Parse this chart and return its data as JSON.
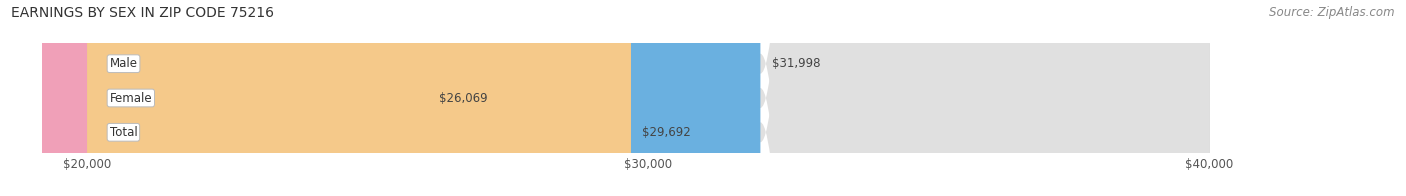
{
  "title": "EARNINGS BY SEX IN ZIP CODE 75216",
  "source": "Source: ZipAtlas.com",
  "categories": [
    "Male",
    "Female",
    "Total"
  ],
  "values": [
    31998,
    26069,
    29692
  ],
  "bar_colors": [
    "#6ab0e0",
    "#f0a0b8",
    "#f5c98a"
  ],
  "bar_bg_color": "#e0e0e0",
  "xmin": 20000,
  "xmax": 40000,
  "xticks": [
    20000,
    30000,
    40000
  ],
  "xtick_labels": [
    "$20,000",
    "$30,000",
    "$40,000"
  ],
  "value_labels": [
    "$31,998",
    "$26,069",
    "$29,692"
  ],
  "title_fontsize": 10,
  "source_fontsize": 8.5,
  "bar_height": 0.58,
  "figsize": [
    14.06,
    1.96
  ],
  "dpi": 100
}
